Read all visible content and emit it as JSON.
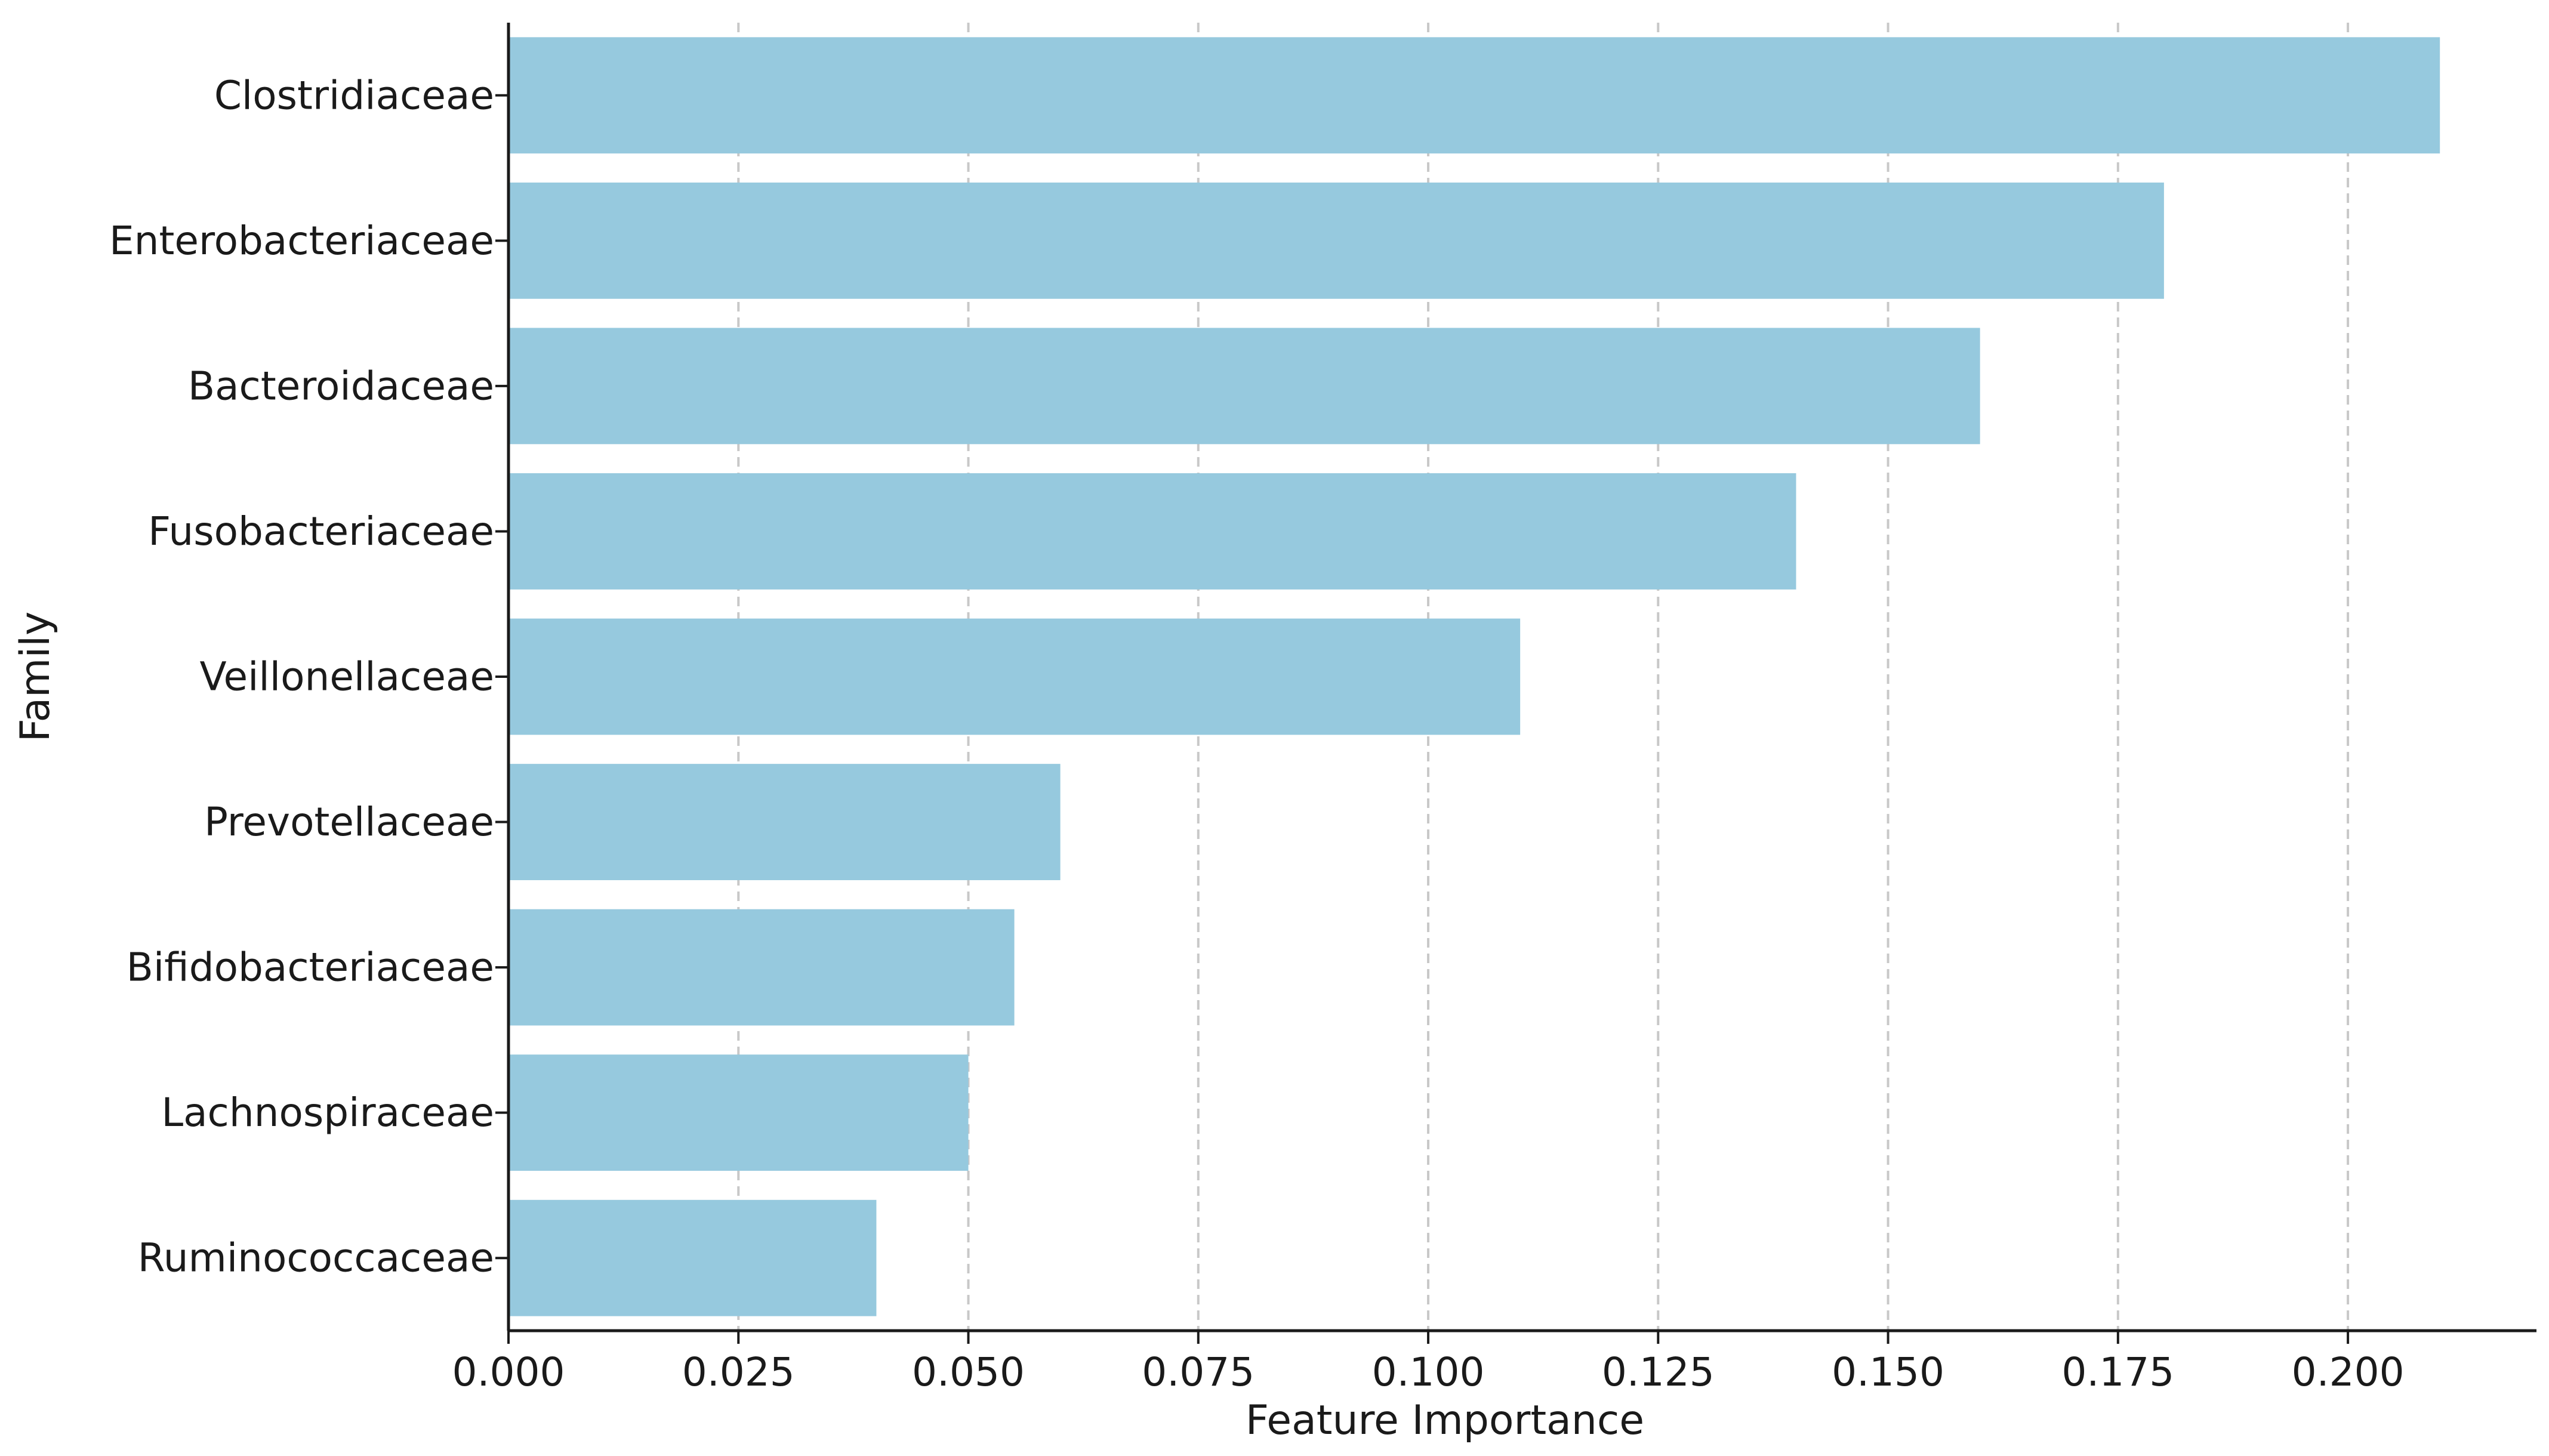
{
  "chart_data": {
    "type": "bar",
    "orientation": "horizontal",
    "title": "",
    "xlabel": "Feature Importance",
    "ylabel": "Family",
    "categories": [
      "Clostridiaceae",
      "Enterobacteriaceae",
      "Bacteroidaceae",
      "Fusobacteriaceae",
      "Veillonellaceae",
      "Prevotellaceae",
      "Bifidobacteriaceae",
      "Lachnospiraceae",
      "Ruminococcaceae"
    ],
    "values": [
      0.21,
      0.18,
      0.16,
      0.14,
      0.11,
      0.06,
      0.055,
      0.05,
      0.04
    ],
    "xlim": [
      0,
      0.2205
    ],
    "xticks": [
      0.0,
      0.025,
      0.05,
      0.075,
      0.1,
      0.125,
      0.15,
      0.175,
      0.2
    ],
    "xtick_labels": [
      "0.000",
      "0.025",
      "0.050",
      "0.075",
      "0.100",
      "0.125",
      "0.150",
      "0.175",
      "0.200"
    ],
    "grid": "x, dashed",
    "legend": "none",
    "colors": {
      "bar": "#96c9de",
      "grid": "#c8c8c8",
      "axis": "#1a1a1a"
    }
  }
}
